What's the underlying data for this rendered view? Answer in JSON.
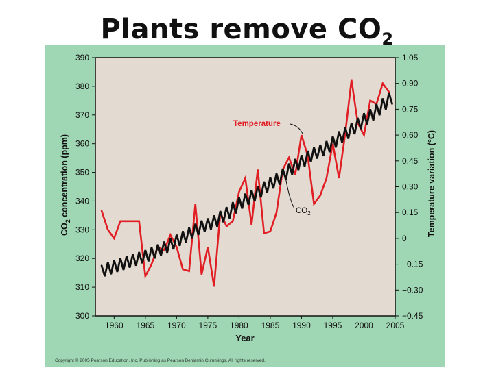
{
  "slide": {
    "title": "Plants remove CO",
    "title_subscript": "2",
    "copyright": "Copyright © 2005 Pearson Education, Inc. Publishing as Pearson Benjamin Cummings. All rights reserved."
  },
  "colors": {
    "panel_background": "#9fd6b3",
    "plot_background": "#e3dad1",
    "temperature_line": "#e01e24",
    "co2_line": "#111111"
  },
  "chart_data": {
    "type": "line",
    "xlabel": "Year",
    "ylabel_left": "CO",
    "ylabel_left_sub": "2",
    "ylabel_left_suffix": " concentration (ppm)",
    "ylabel_right": "Temperature variation (°C)",
    "xlim": [
      1957,
      2005
    ],
    "ylim_left": [
      300,
      390
    ],
    "ylim_right": [
      -0.45,
      1.05
    ],
    "x_ticks": [
      1960,
      1965,
      1970,
      1975,
      1980,
      1985,
      1990,
      1995,
      2000,
      2005
    ],
    "x_tick_labels": [
      "1960",
      "1965",
      "1970",
      "1975",
      "1980",
      "1985",
      "1990",
      "1995",
      "2000",
      "2005"
    ],
    "y_ticks_left": [
      300,
      310,
      320,
      330,
      340,
      350,
      360,
      370,
      380,
      390
    ],
    "y_tick_labels_left": [
      "300",
      "310",
      "320",
      "330",
      "340",
      "350",
      "360",
      "370",
      "380",
      "390"
    ],
    "y_ticks_right": [
      -0.45,
      -0.3,
      -0.15,
      0,
      0.15,
      0.3,
      0.45,
      0.6,
      0.75,
      0.9,
      1.05
    ],
    "y_tick_labels_right": [
      "−0.45",
      "−0.30",
      "−0.15",
      "0",
      "0.15",
      "0.30",
      "0.45",
      "0.60",
      "0.75",
      "0.90",
      "1.05"
    ],
    "annotations": {
      "temperature": "Temperature",
      "co2": "CO",
      "co2_sub": "2"
    },
    "series": [
      {
        "name": "Temperature",
        "axis": "right",
        "x": [
          1958,
          1959,
          1960,
          1961,
          1962,
          1963,
          1964,
          1965,
          1966,
          1967,
          1968,
          1969,
          1970,
          1971,
          1972,
          1973,
          1974,
          1975,
          1976,
          1977,
          1978,
          1979,
          1980,
          1981,
          1982,
          1983,
          1984,
          1985,
          1986,
          1987,
          1988,
          1989,
          1990,
          1991,
          1992,
          1993,
          1994,
          1995,
          1996,
          1997,
          1998,
          1999,
          2000,
          2001,
          2002,
          2003,
          2004
        ],
        "values": [
          0.16,
          0.05,
          0.0,
          0.1,
          0.1,
          0.1,
          0.1,
          -0.22,
          -0.15,
          -0.05,
          -0.07,
          0.02,
          -0.05,
          -0.18,
          -0.19,
          0.2,
          -0.21,
          -0.05,
          -0.28,
          0.15,
          0.07,
          0.1,
          0.27,
          0.35,
          0.08,
          0.4,
          0.03,
          0.04,
          0.15,
          0.4,
          0.47,
          0.37,
          0.6,
          0.48,
          0.2,
          0.25,
          0.35,
          0.55,
          0.35,
          0.61,
          0.92,
          0.67,
          0.6,
          0.8,
          0.78,
          0.9,
          0.85
        ]
      },
      {
        "name": "CO2",
        "axis": "left",
        "x": [
          1958.0,
          1958.5,
          1959.0,
          1959.5,
          1960.0,
          1960.5,
          1961.0,
          1961.5,
          1962.0,
          1962.5,
          1963.0,
          1963.5,
          1964.0,
          1964.5,
          1965.0,
          1965.5,
          1966.0,
          1966.5,
          1967.0,
          1967.5,
          1968.0,
          1968.5,
          1969.0,
          1969.5,
          1970.0,
          1970.5,
          1971.0,
          1971.5,
          1972.0,
          1972.5,
          1973.0,
          1973.5,
          1974.0,
          1974.5,
          1975.0,
          1975.5,
          1976.0,
          1976.5,
          1977.0,
          1977.5,
          1978.0,
          1978.5,
          1979.0,
          1979.5,
          1980.0,
          1980.5,
          1981.0,
          1981.5,
          1982.0,
          1982.5,
          1983.0,
          1983.5,
          1984.0,
          1984.5,
          1985.0,
          1985.5,
          1986.0,
          1986.5,
          1987.0,
          1987.5,
          1988.0,
          1988.5,
          1989.0,
          1989.5,
          1990.0,
          1990.5,
          1991.0,
          1991.5,
          1992.0,
          1992.5,
          1993.0,
          1993.5,
          1994.0,
          1994.5,
          1995.0,
          1995.5,
          1996.0,
          1996.5,
          1997.0,
          1997.5,
          1998.0,
          1998.5,
          1999.0,
          1999.5,
          2000.0,
          2000.5,
          2001.0,
          2001.5,
          2002.0,
          2002.5,
          2003.0,
          2003.5,
          2004.0,
          2004.5
        ],
        "values": [
          317.5,
          313.8,
          318.7,
          314.5,
          319.4,
          315.3,
          320.1,
          316.0,
          320.8,
          316.8,
          321.5,
          317.5,
          322.2,
          318.3,
          322.9,
          319.0,
          323.9,
          320.0,
          324.9,
          321.0,
          325.9,
          322.0,
          327.1,
          323.2,
          328.3,
          324.4,
          329.5,
          325.6,
          330.8,
          326.9,
          332.1,
          328.2,
          333.2,
          329.3,
          334.0,
          330.1,
          335.0,
          331.1,
          336.5,
          332.6,
          337.9,
          334.0,
          339.6,
          335.7,
          341.3,
          337.4,
          342.6,
          338.7,
          343.8,
          339.9,
          345.2,
          341.3,
          346.8,
          342.9,
          348.3,
          344.4,
          349.6,
          345.7,
          351.3,
          347.4,
          353.1,
          349.2,
          354.7,
          350.8,
          356.0,
          352.1,
          357.5,
          353.6,
          358.7,
          354.8,
          359.6,
          355.7,
          360.9,
          357.0,
          362.6,
          358.7,
          364.3,
          360.4,
          365.6,
          361.7,
          367.2,
          363.3,
          369.0,
          365.1,
          370.6,
          366.7,
          372.0,
          368.1,
          373.8,
          369.9,
          375.8,
          371.9,
          377.8,
          373.9
        ]
      }
    ]
  }
}
